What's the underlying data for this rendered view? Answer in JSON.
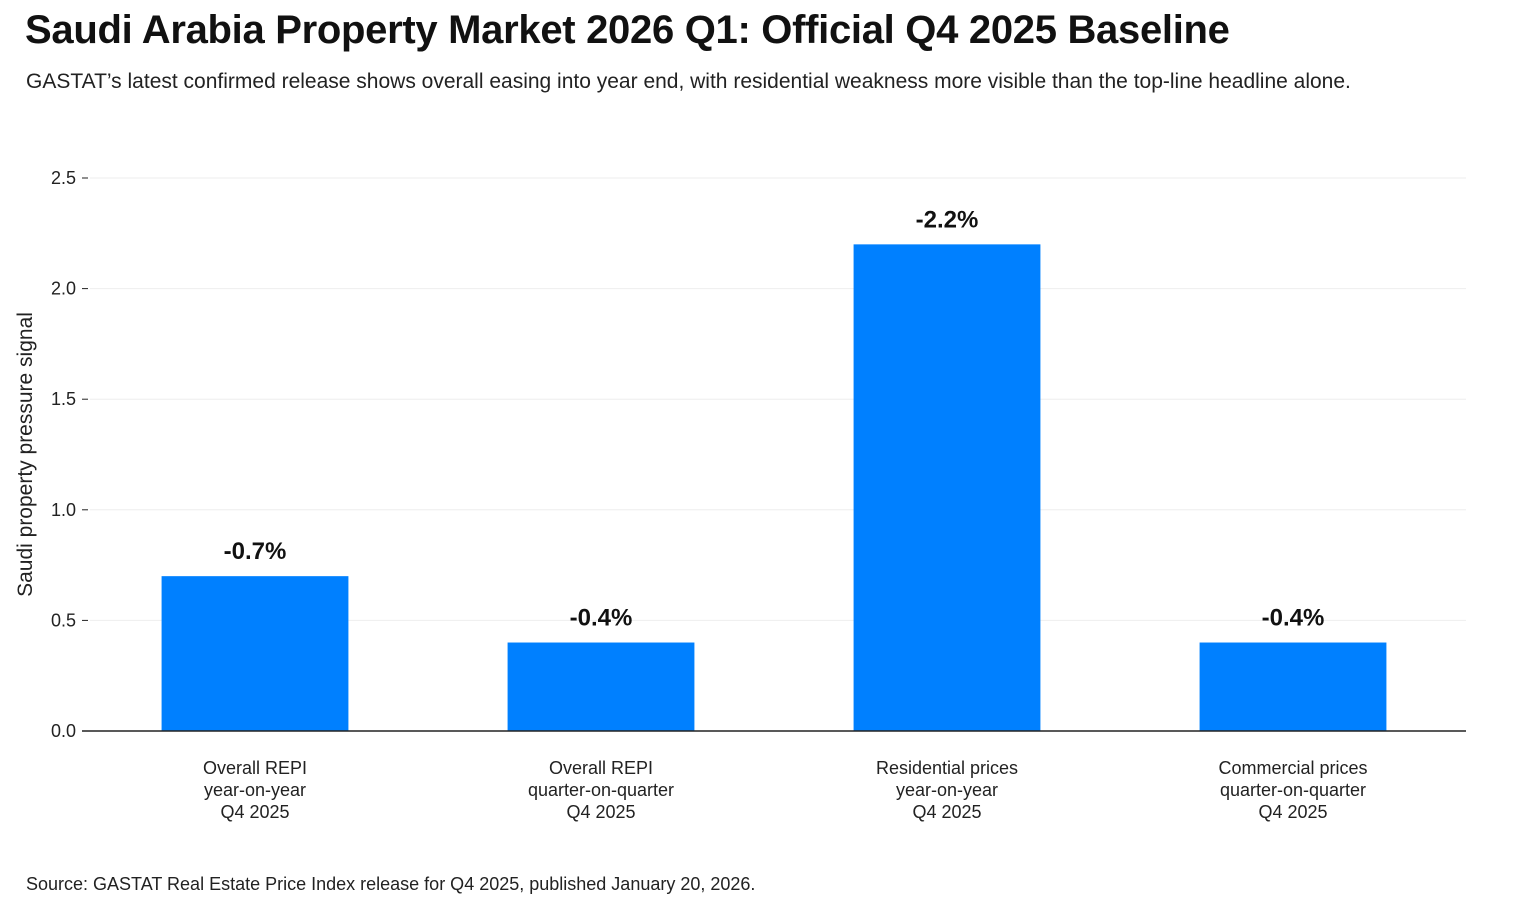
{
  "title": "Saudi Arabia Property Market 2026 Q1: Official Q4 2025 Baseline",
  "subtitle": "GASTAT’s latest confirmed release shows overall easing into year end, with residential weakness more visible than the top-line headline alone.",
  "source": "Source: GASTAT Real Estate Price Index release for Q4 2025, published January 20, 2026.",
  "colors": {
    "bar": "#0080ff",
    "grid": "#eeeeee",
    "axis": "#222222"
  },
  "chart_data": {
    "type": "bar",
    "categories": [
      [
        "Overall REPI",
        "year-on-year",
        "Q4 2025"
      ],
      [
        "Overall REPI",
        "quarter-on-quarter",
        "Q4 2025"
      ],
      [
        "Residential prices",
        "year-on-year",
        "Q4 2025"
      ],
      [
        "Commercial prices",
        "quarter-on-quarter",
        "Q4 2025"
      ]
    ],
    "values": [
      0.7,
      0.4,
      2.2,
      0.4
    ],
    "data_labels": [
      "-0.7%",
      "-0.4%",
      "-2.2%",
      "-0.4%"
    ],
    "ylabel": "Saudi property pressure signal",
    "xlabel": "",
    "ylim": [
      0,
      2.5
    ],
    "yticks": [
      "0.0",
      "0.5",
      "1.0",
      "1.5",
      "2.0",
      "2.5"
    ],
    "grid": true,
    "legend": "none"
  }
}
